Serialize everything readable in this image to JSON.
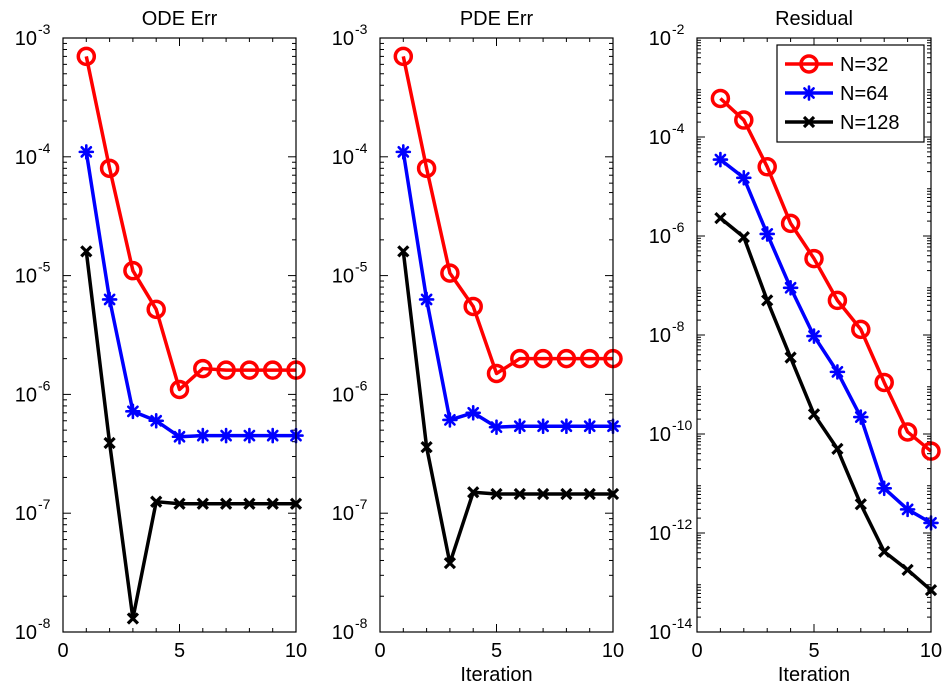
{
  "chart_data": [
    {
      "type": "line",
      "title": "ODE Err",
      "xlabel": "",
      "ylabel": "",
      "yscale": "log",
      "xlim": [
        0,
        10
      ],
      "ylim": [
        1e-08,
        0.001
      ],
      "xticks": [
        {
          "value": 0,
          "label": "0"
        },
        {
          "value": 5,
          "label": "5"
        },
        {
          "value": 10,
          "label": "10"
        }
      ],
      "yticks": [
        {
          "value": 1e-08,
          "base": "10",
          "exp": "-8"
        },
        {
          "value": 1e-07,
          "base": "10",
          "exp": "-7"
        },
        {
          "value": 1e-06,
          "base": "10",
          "exp": "-6"
        },
        {
          "value": 1e-05,
          "base": "10",
          "exp": "-5"
        },
        {
          "value": 0.0001,
          "base": "10",
          "exp": "-4"
        },
        {
          "value": 0.001,
          "base": "10",
          "exp": "-3"
        }
      ],
      "grid": false,
      "x": [
        1,
        2,
        3,
        4,
        5,
        6,
        7,
        8,
        9,
        10
      ],
      "series": [
        {
          "name": "N=32",
          "color": "#ff0000",
          "marker": "circle",
          "values": [
            0.0007,
            8e-05,
            1.1e-05,
            5.2e-06,
            1.1e-06,
            1.65e-06,
            1.6e-06,
            1.6e-06,
            1.6e-06,
            1.6e-06
          ]
        },
        {
          "name": "N=64",
          "color": "#0000ff",
          "marker": "asterisk",
          "values": [
            0.00011,
            6.3e-06,
            7.2e-07,
            6e-07,
            4.4e-07,
            4.5e-07,
            4.5e-07,
            4.5e-07,
            4.5e-07,
            4.5e-07
          ]
        },
        {
          "name": "N=128",
          "color": "#000000",
          "marker": "cross",
          "values": [
            1.6e-05,
            3.9e-07,
            1.3e-08,
            1.25e-07,
            1.2e-07,
            1.2e-07,
            1.2e-07,
            1.2e-07,
            1.2e-07,
            1.2e-07
          ]
        }
      ]
    },
    {
      "type": "line",
      "title": "PDE Err",
      "xlabel": "Iteration",
      "ylabel": "",
      "yscale": "log",
      "xlim": [
        0,
        10
      ],
      "ylim": [
        1e-08,
        0.001
      ],
      "xticks": [
        {
          "value": 0,
          "label": "0"
        },
        {
          "value": 5,
          "label": "5"
        },
        {
          "value": 10,
          "label": "10"
        }
      ],
      "yticks": [
        {
          "value": 1e-08,
          "base": "10",
          "exp": "-8"
        },
        {
          "value": 1e-07,
          "base": "10",
          "exp": "-7"
        },
        {
          "value": 1e-06,
          "base": "10",
          "exp": "-6"
        },
        {
          "value": 1e-05,
          "base": "10",
          "exp": "-5"
        },
        {
          "value": 0.0001,
          "base": "10",
          "exp": "-4"
        },
        {
          "value": 0.001,
          "base": "10",
          "exp": "-3"
        }
      ],
      "grid": false,
      "x": [
        1,
        2,
        3,
        4,
        5,
        6,
        7,
        8,
        9,
        10
      ],
      "series": [
        {
          "name": "N=32",
          "color": "#ff0000",
          "marker": "circle",
          "values": [
            0.0007,
            8e-05,
            1.05e-05,
            5.5e-06,
            1.5e-06,
            2e-06,
            2e-06,
            2e-06,
            2e-06,
            2e-06
          ]
        },
        {
          "name": "N=64",
          "color": "#0000ff",
          "marker": "asterisk",
          "values": [
            0.00011,
            6.3e-06,
            6.1e-07,
            7e-07,
            5.3e-07,
            5.4e-07,
            5.4e-07,
            5.4e-07,
            5.4e-07,
            5.4e-07
          ]
        },
        {
          "name": "N=128",
          "color": "#000000",
          "marker": "cross",
          "values": [
            1.6e-05,
            3.6e-07,
            3.8e-08,
            1.5e-07,
            1.45e-07,
            1.45e-07,
            1.45e-07,
            1.45e-07,
            1.45e-07,
            1.45e-07
          ]
        }
      ]
    },
    {
      "type": "line",
      "title": "Residual",
      "xlabel": "Iteration",
      "ylabel": "",
      "yscale": "log",
      "xlim": [
        0,
        10
      ],
      "ylim": [
        1e-14,
        0.01
      ],
      "xticks": [
        {
          "value": 0,
          "label": "0"
        },
        {
          "value": 5,
          "label": "5"
        },
        {
          "value": 10,
          "label": "10"
        }
      ],
      "yticks": [
        {
          "value": 1e-14,
          "base": "10",
          "exp": "-14"
        },
        {
          "value": 1e-12,
          "base": "10",
          "exp": "-12"
        },
        {
          "value": 1e-10,
          "base": "10",
          "exp": "-10"
        },
        {
          "value": 1e-08,
          "base": "10",
          "exp": "-8"
        },
        {
          "value": 1e-06,
          "base": "10",
          "exp": "-6"
        },
        {
          "value": 0.0001,
          "base": "10",
          "exp": "-4"
        },
        {
          "value": 0.01,
          "base": "10",
          "exp": "-2"
        }
      ],
      "grid": false,
      "legend": "top-right",
      "x": [
        1,
        2,
        3,
        4,
        5,
        6,
        7,
        8,
        9,
        10
      ],
      "series": [
        {
          "name": "N=32",
          "color": "#ff0000",
          "marker": "circle",
          "values": [
            0.0006,
            0.00022,
            2.5e-05,
            1.8e-06,
            3.5e-07,
            5e-08,
            1.3e-08,
            1.1e-09,
            1.1e-10,
            4.5e-11
          ]
        },
        {
          "name": "N=64",
          "color": "#0000ff",
          "marker": "asterisk",
          "values": [
            3.5e-05,
            1.5e-05,
            1.1e-06,
            9e-08,
            9.5e-09,
            1.8e-09,
            2.2e-10,
            8e-12,
            3e-12,
            1.6e-12
          ]
        },
        {
          "name": "N=128",
          "color": "#000000",
          "marker": "cross",
          "values": [
            2.3e-06,
            9.5e-07,
            5e-08,
            3.5e-09,
            2.5e-10,
            5e-11,
            3.8e-12,
            4.2e-13,
            1.8e-13,
            7e-14
          ]
        }
      ]
    }
  ]
}
